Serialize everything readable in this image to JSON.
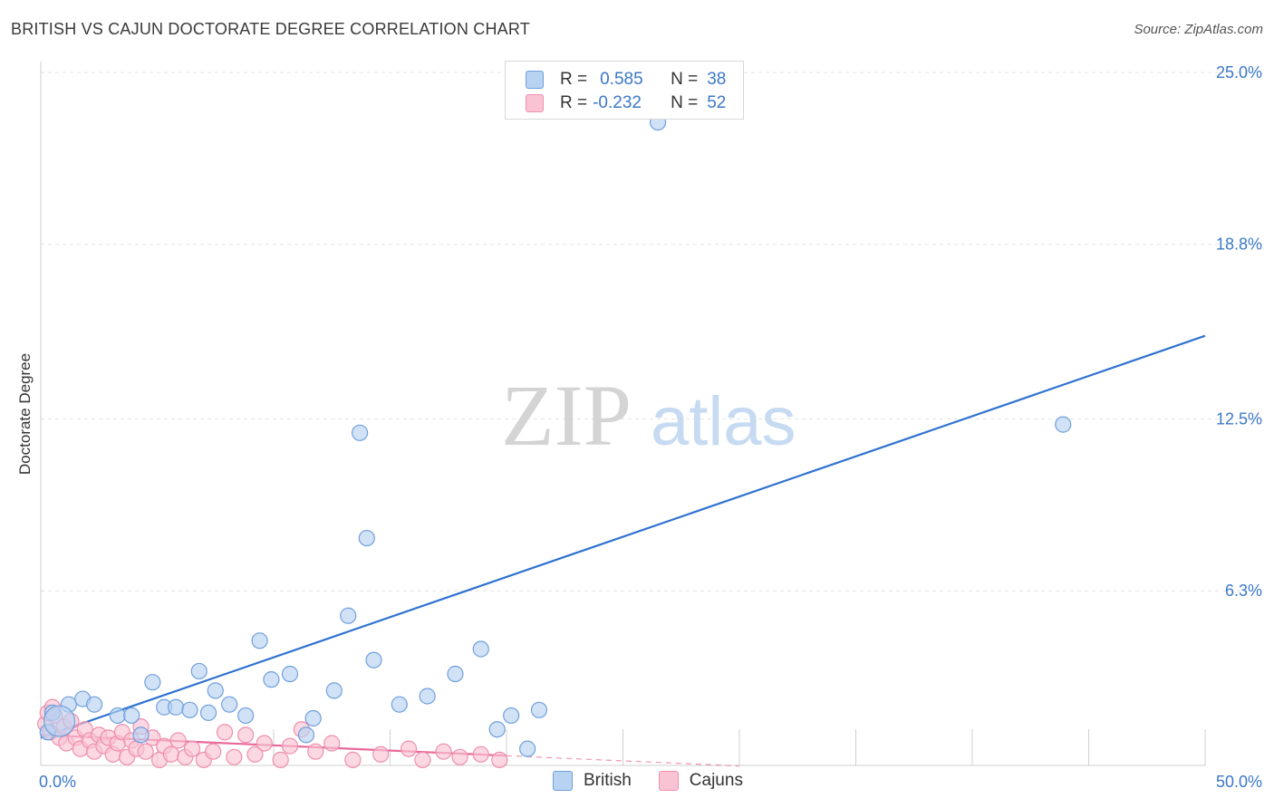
{
  "header": {
    "title": "BRITISH VS CAJUN DOCTORATE DEGREE CORRELATION CHART",
    "source": "Source: ZipAtlas.com"
  },
  "watermark": {
    "zip": "ZIP",
    "atlas": "atlas"
  },
  "legend": {
    "rows": [
      {
        "r_label": "R =",
        "r_value": "0.585",
        "n_label": "N =",
        "n_value": "38"
      },
      {
        "r_label": "R =",
        "r_value": "-0.232",
        "n_label": "N =",
        "n_value": "52"
      }
    ]
  },
  "bottom_legend": {
    "british": "British",
    "cajuns": "Cajuns"
  },
  "colors": {
    "british_fill": "#b8d2f2",
    "british_stroke": "#6fa0dc",
    "british_line": "#2f72d1",
    "cajun_fill": "#f9c3d3",
    "cajun_stroke": "#ef8fae",
    "cajun_line": "#e8699a",
    "tick_text": "#3b78c9",
    "grid": "#e3e3e3"
  },
  "chart_data": {
    "type": "scatter",
    "title": "BRITISH VS CAJUN DOCTORATE DEGREE CORRELATION CHART",
    "ylabel": "Doctorate Degree",
    "xlabel": "",
    "xlim": [
      0,
      50
    ],
    "ylim": [
      0,
      25.0
    ],
    "x_tick_labels": [
      "0.0%",
      "50.0%"
    ],
    "y_ticks": [
      6.3,
      12.5,
      18.8,
      25.0
    ],
    "y_tick_labels": [
      "6.3%",
      "12.5%",
      "18.8%",
      "25.0%"
    ],
    "grid": true,
    "legend_position": "top-center",
    "series": [
      {
        "name": "British",
        "r": 0.585,
        "n": 38,
        "trend": {
          "x": [
            0,
            50
          ],
          "y": [
            1.0,
            15.5
          ]
        },
        "points": [
          [
            0.5,
            1.9,
            1.0
          ],
          [
            0.3,
            1.2,
            1.0
          ],
          [
            1.2,
            2.2,
            1.0
          ],
          [
            1.8,
            2.4,
            1.0
          ],
          [
            2.3,
            2.2,
            1.0
          ],
          [
            3.3,
            1.8,
            1.0
          ],
          [
            3.9,
            1.8,
            1.0
          ],
          [
            4.3,
            1.1,
            1.0
          ],
          [
            4.8,
            3.0,
            1.0
          ],
          [
            5.3,
            2.1,
            1.0
          ],
          [
            5.8,
            2.1,
            1.0
          ],
          [
            6.4,
            2.0,
            1.0
          ],
          [
            6.8,
            3.4,
            1.0
          ],
          [
            7.2,
            1.9,
            1.0
          ],
          [
            7.5,
            2.7,
            1.0
          ],
          [
            8.1,
            2.2,
            1.0
          ],
          [
            8.8,
            1.8,
            1.0
          ],
          [
            9.4,
            4.5,
            1.0
          ],
          [
            9.9,
            3.1,
            1.0
          ],
          [
            10.7,
            3.3,
            1.0
          ],
          [
            11.4,
            1.1,
            1.0
          ],
          [
            11.7,
            1.7,
            1.0
          ],
          [
            12.6,
            2.7,
            1.0
          ],
          [
            13.2,
            5.4,
            1.0
          ],
          [
            13.7,
            12.0,
            1.0
          ],
          [
            14.0,
            8.2,
            1.0
          ],
          [
            14.3,
            3.8,
            1.0
          ],
          [
            15.4,
            2.2,
            1.0
          ],
          [
            16.6,
            2.5,
            1.0
          ],
          [
            17.8,
            3.3,
            1.0
          ],
          [
            18.9,
            4.2,
            1.0
          ],
          [
            19.6,
            1.3,
            1.0
          ],
          [
            20.2,
            1.8,
            1.0
          ],
          [
            20.9,
            0.6,
            1.0
          ],
          [
            21.4,
            2.0,
            1.0
          ],
          [
            26.5,
            23.2,
            1.0
          ],
          [
            43.9,
            12.3,
            1.0
          ],
          [
            0.8,
            1.6,
            2.0
          ]
        ]
      },
      {
        "name": "Cajuns",
        "r": -0.232,
        "n": 52,
        "trend": {
          "x": [
            0,
            20
          ],
          "y": [
            1.1,
            0.35
          ]
        },
        "trend_dashed": {
          "x": [
            20,
            30
          ],
          "y": [
            0.35,
            -0.02
          ]
        },
        "points": [
          [
            0.2,
            1.5,
            1.0
          ],
          [
            0.4,
            1.2,
            1.0
          ],
          [
            0.6,
            1.8,
            1.0
          ],
          [
            0.8,
            1.0,
            1.0
          ],
          [
            1.0,
            1.4,
            1.0
          ],
          [
            1.1,
            0.8,
            1.0
          ],
          [
            1.3,
            1.6,
            1.0
          ],
          [
            1.5,
            1.0,
            1.0
          ],
          [
            1.7,
            0.6,
            1.0
          ],
          [
            1.9,
            1.3,
            1.0
          ],
          [
            2.1,
            0.9,
            1.0
          ],
          [
            2.3,
            0.5,
            1.0
          ],
          [
            2.5,
            1.1,
            1.0
          ],
          [
            2.7,
            0.7,
            1.0
          ],
          [
            2.9,
            1.0,
            1.0
          ],
          [
            3.1,
            0.4,
            1.0
          ],
          [
            3.3,
            0.8,
            1.0
          ],
          [
            3.5,
            1.2,
            1.0
          ],
          [
            3.7,
            0.3,
            1.0
          ],
          [
            3.9,
            0.9,
            1.0
          ],
          [
            4.1,
            0.6,
            1.0
          ],
          [
            4.3,
            1.4,
            1.0
          ],
          [
            4.5,
            0.5,
            1.0
          ],
          [
            4.8,
            1.0,
            1.0
          ],
          [
            5.1,
            0.2,
            1.0
          ],
          [
            5.3,
            0.7,
            1.0
          ],
          [
            5.6,
            0.4,
            1.0
          ],
          [
            5.9,
            0.9,
            1.0
          ],
          [
            6.2,
            0.3,
            1.0
          ],
          [
            6.5,
            0.6,
            1.0
          ],
          [
            7.0,
            0.2,
            1.0
          ],
          [
            7.4,
            0.5,
            1.0
          ],
          [
            7.9,
            1.2,
            1.0
          ],
          [
            8.3,
            0.3,
            1.0
          ],
          [
            8.8,
            1.1,
            1.0
          ],
          [
            9.2,
            0.4,
            1.0
          ],
          [
            9.6,
            0.8,
            1.0
          ],
          [
            10.3,
            0.2,
            1.0
          ],
          [
            10.7,
            0.7,
            1.0
          ],
          [
            11.2,
            1.3,
            1.0
          ],
          [
            11.8,
            0.5,
            1.0
          ],
          [
            12.5,
            0.8,
            1.0
          ],
          [
            13.4,
            0.2,
            1.0
          ],
          [
            14.6,
            0.4,
            1.0
          ],
          [
            15.8,
            0.6,
            1.0
          ],
          [
            16.4,
            0.2,
            1.0
          ],
          [
            17.3,
            0.5,
            1.0
          ],
          [
            18.0,
            0.3,
            1.0
          ],
          [
            18.9,
            0.4,
            1.0
          ],
          [
            19.7,
            0.2,
            1.0
          ],
          [
            0.3,
            1.9,
            1.0
          ],
          [
            0.5,
            2.1,
            1.0
          ]
        ]
      }
    ]
  }
}
